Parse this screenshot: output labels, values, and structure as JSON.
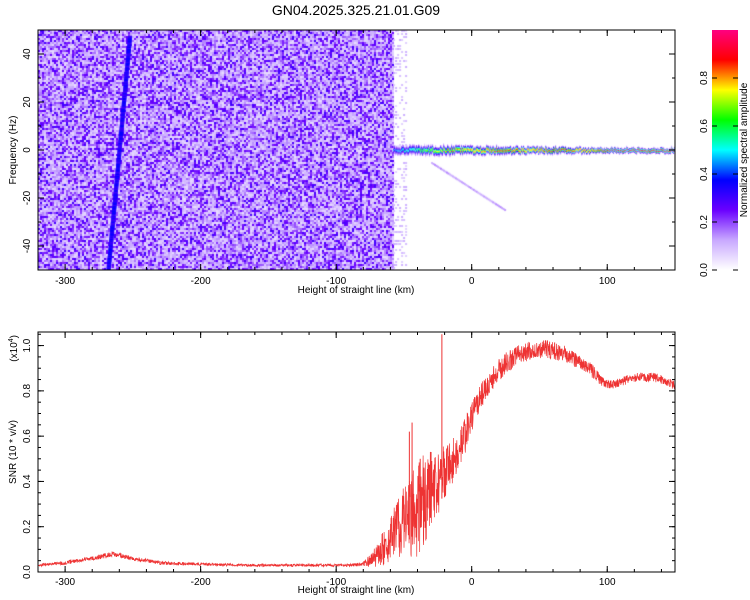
{
  "figure_title": "GN04.2025.325.21.01.G09",
  "chart_data": [
    {
      "type": "heatmap",
      "xlabel": "Height of straight line (km)",
      "ylabel": "Frequency (Hz)",
      "xlim": [
        -320,
        150
      ],
      "ylim": [
        -50,
        50
      ],
      "xticks": [
        -300,
        -200,
        -100,
        0,
        100
      ],
      "yticks": [
        -40,
        -20,
        0,
        20,
        40
      ],
      "xtick_labels": [
        "-300",
        "-200",
        "-100",
        "0",
        "100"
      ],
      "ytick_labels": [
        "-40",
        "-20",
        "0",
        "20",
        "40"
      ],
      "noise_region_x": [
        -320,
        -58
      ],
      "noise_amplitude_range": [
        0.05,
        0.3
      ],
      "weak_noise_tail_x": [
        -58,
        -55
      ],
      "drift_trace": {
        "x_bottom": -268,
        "y_bottom": -50,
        "x_top": -252,
        "y_top": 48,
        "amplitude": 0.3
      },
      "carrier_trace": {
        "x_start": -58,
        "x_end": 150,
        "frequency_hz": 0,
        "profile": [
          {
            "x": -58,
            "amplitude": 0.45
          },
          {
            "x": -50,
            "amplitude": 0.55
          },
          {
            "x": -30,
            "amplitude": 0.75
          },
          {
            "x": 0,
            "amplitude": 0.9
          },
          {
            "x": 40,
            "amplitude": 0.95
          },
          {
            "x": 100,
            "amplitude": 0.95
          },
          {
            "x": 150,
            "amplitude": 0.95
          }
        ]
      },
      "colorbar": {
        "label": "Normalized spectral amplitude",
        "range": [
          0,
          1
        ],
        "ticks": [
          0.0,
          0.2,
          0.4,
          0.6,
          0.8
        ],
        "tick_labels": [
          "0.0",
          "0.2",
          "0.4",
          "0.6",
          "0.8"
        ],
        "colors": [
          "#ffffff",
          "#c8a8ff",
          "#6a00ff",
          "#0000ff",
          "#00ffff",
          "#00ff00",
          "#ffff00",
          "#ff0000",
          "#ff0080"
        ]
      }
    },
    {
      "type": "line",
      "xlabel": "Height of straight line (km)",
      "ylabel": "SNR (10 * v/v)",
      "y_multiplier_label": "(x10",
      "y_multiplier_exponent": "4",
      "y_multiplier_suffix": ")",
      "xlim": [
        -320,
        150
      ],
      "ylim": [
        0,
        1.06
      ],
      "xticks": [
        -300,
        -200,
        -100,
        0,
        100
      ],
      "yticks": [
        0.0,
        0.2,
        0.4,
        0.6,
        0.8,
        1.0
      ],
      "xtick_labels": [
        "-300",
        "-200",
        "-100",
        "0",
        "100"
      ],
      "ytick_labels": [
        "0.0",
        "0.2",
        "0.4",
        "0.6",
        "0.8",
        "1.0"
      ],
      "color": "#ee3333",
      "series": [
        {
          "name": "SNR",
          "x": [
            -320,
            -300,
            -280,
            -265,
            -250,
            -230,
            -200,
            -170,
            -140,
            -110,
            -90,
            -80,
            -75,
            -70,
            -65,
            -60,
            -55,
            -50,
            -45,
            -40,
            -35,
            -30,
            -25,
            -20,
            -15,
            -10,
            -5,
            0,
            5,
            10,
            15,
            20,
            25,
            30,
            35,
            40,
            45,
            50,
            55,
            60,
            65,
            70,
            75,
            80,
            85,
            90,
            95,
            100,
            105,
            110,
            115,
            120,
            125,
            130,
            135,
            140,
            145,
            150
          ],
          "y": [
            0.03,
            0.04,
            0.06,
            0.08,
            0.06,
            0.04,
            0.035,
            0.03,
            0.03,
            0.03,
            0.03,
            0.035,
            0.05,
            0.07,
            0.11,
            0.15,
            0.2,
            0.22,
            0.25,
            0.28,
            0.32,
            0.36,
            0.4,
            0.44,
            0.48,
            0.54,
            0.6,
            0.68,
            0.75,
            0.81,
            0.85,
            0.89,
            0.92,
            0.94,
            0.96,
            0.97,
            0.98,
            0.98,
            0.985,
            0.98,
            0.97,
            0.96,
            0.94,
            0.93,
            0.91,
            0.88,
            0.85,
            0.83,
            0.83,
            0.84,
            0.85,
            0.86,
            0.86,
            0.86,
            0.86,
            0.85,
            0.84,
            0.82
          ],
          "noise_amplitude": [
            0.006,
            0.008,
            0.01,
            0.012,
            0.01,
            0.008,
            0.006,
            0.006,
            0.006,
            0.006,
            0.006,
            0.01,
            0.03,
            0.05,
            0.08,
            0.1,
            0.13,
            0.16,
            0.2,
            0.22,
            0.2,
            0.18,
            0.15,
            0.12,
            0.1,
            0.09,
            0.08,
            0.07,
            0.06,
            0.06,
            0.05,
            0.05,
            0.05,
            0.045,
            0.045,
            0.04,
            0.04,
            0.04,
            0.04,
            0.04,
            0.04,
            0.035,
            0.035,
            0.03,
            0.03,
            0.03,
            0.025,
            0.02,
            0.02,
            0.02,
            0.02,
            0.02,
            0.02,
            0.02,
            0.02,
            0.02,
            0.02,
            0.02
          ],
          "spikes": [
            {
              "x": -22,
              "y": 1.05
            },
            {
              "x": -44,
              "y": 0.66
            },
            {
              "x": -46,
              "y": 0.62
            },
            {
              "x": -38,
              "y": 0.5
            },
            {
              "x": -30,
              "y": 0.53
            }
          ]
        }
      ]
    }
  ]
}
